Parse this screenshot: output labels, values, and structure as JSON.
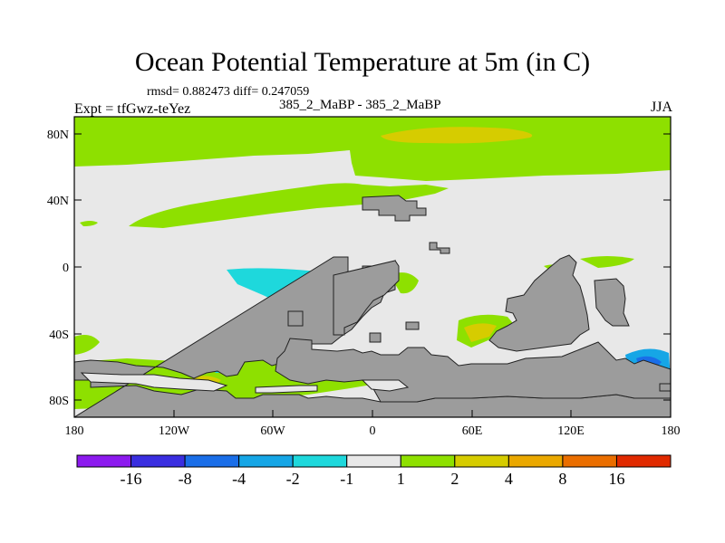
{
  "title": "Ocean Potential Temperature at 5m (in C)",
  "stats_text": "rmsd= 0.882473 diff= 0.247059",
  "experiment": "Expt = tfGwz-teYez",
  "cases": "385_2_MaBP - 385_2_MaBP",
  "season": "JJA",
  "lon_ticks": [
    "180",
    "120W",
    "60W",
    "0",
    "60E",
    "120E",
    "180"
  ],
  "lat_ticks": [
    "80N",
    "40N",
    "0",
    "40S",
    "80S"
  ],
  "colorbar": {
    "labels": [
      "-16",
      "-8",
      "-4",
      "-2",
      "-1",
      "1",
      "2",
      "4",
      "8",
      "16"
    ],
    "colors": [
      "#8c1aee",
      "#3a2ee0",
      "#1a6ee8",
      "#16a6e6",
      "#1ed8dc",
      "#e8e8e8",
      "#8ee000",
      "#d6cc00",
      "#eaa800",
      "#ea6e00",
      "#e02a00"
    ]
  },
  "colors": {
    "land": "#9c9c9c",
    "positive_small": "#8ee000",
    "neutral": "#e8e8e8",
    "positive_mid": "#d6cc00",
    "negative_small": "#1ed8dc",
    "negative_mid": "#16a6e6",
    "negative_large": "#1a6ee8"
  }
}
